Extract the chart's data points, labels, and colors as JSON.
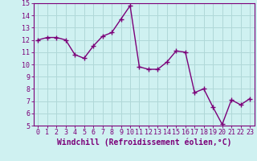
{
  "x": [
    0,
    1,
    2,
    3,
    4,
    5,
    6,
    7,
    8,
    9,
    10,
    11,
    12,
    13,
    14,
    15,
    16,
    17,
    18,
    19,
    20,
    21,
    22,
    23
  ],
  "y": [
    12.0,
    12.2,
    12.2,
    12.0,
    10.8,
    10.5,
    11.5,
    12.3,
    12.6,
    13.7,
    14.8,
    9.8,
    9.6,
    9.6,
    10.2,
    11.1,
    11.0,
    7.7,
    8.0,
    6.5,
    5.1,
    7.1,
    6.7,
    7.2
  ],
  "line_color": "#7b0079",
  "marker": "+",
  "marker_size": 4,
  "line_width": 1.0,
  "bg_color": "#cff1f1",
  "grid_color": "#b0d8d8",
  "xlabel": "Windchill (Refroidissement éolien,°C)",
  "xlabel_color": "#7b0079",
  "ylim": [
    5,
    15
  ],
  "xlim": [
    -0.5,
    23.5
  ],
  "yticks": [
    5,
    6,
    7,
    8,
    9,
    10,
    11,
    12,
    13,
    14,
    15
  ],
  "xticks": [
    0,
    1,
    2,
    3,
    4,
    5,
    6,
    7,
    8,
    9,
    10,
    11,
    12,
    13,
    14,
    15,
    16,
    17,
    18,
    19,
    20,
    21,
    22,
    23
  ],
  "tick_label_color": "#7b0079",
  "spine_color": "#7b0079",
  "font_size": 6.0,
  "xlabel_font_size": 7.0
}
